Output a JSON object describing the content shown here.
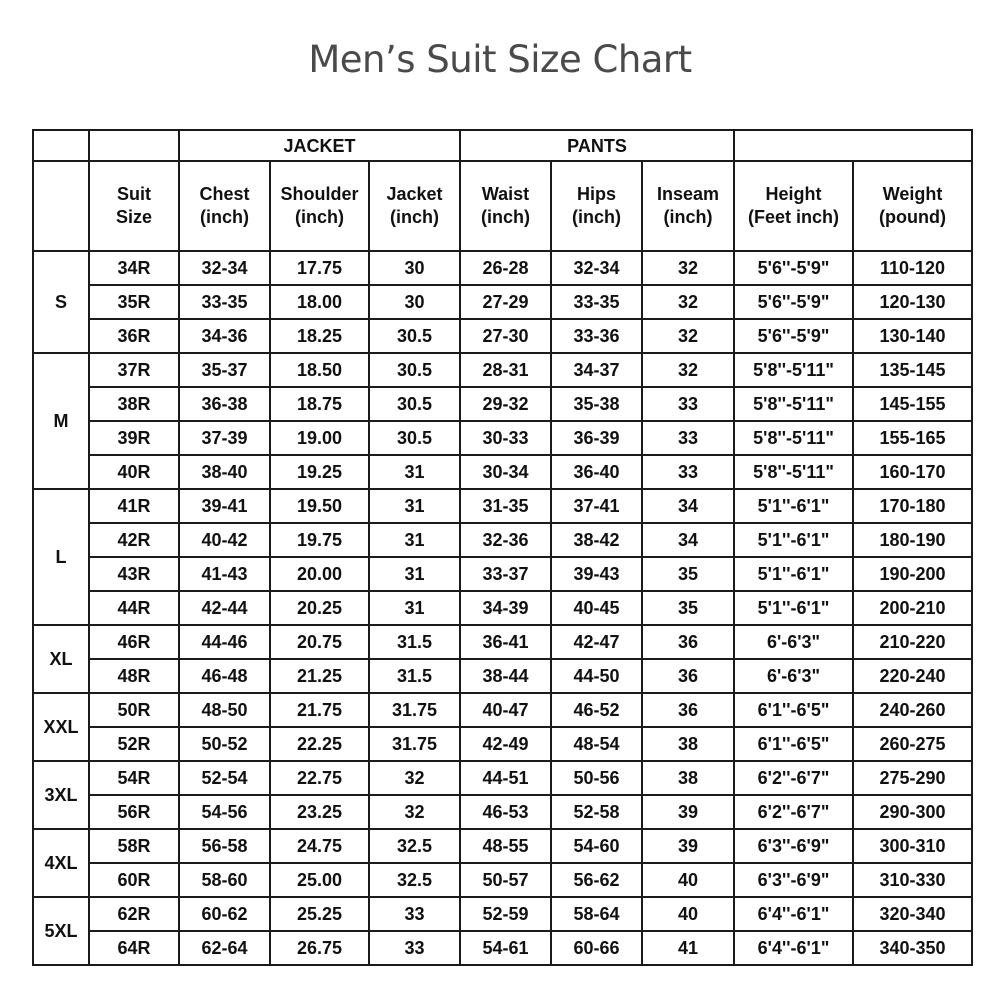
{
  "title": "Men’s Suit Size Chart",
  "groups": {
    "jacket": "JACKET",
    "pants": "PANTS"
  },
  "headers": {
    "suit_size": [
      "Suit",
      "Size"
    ],
    "chest": [
      "Chest",
      "(inch)"
    ],
    "shoulder": [
      "Shoulder",
      "(inch)"
    ],
    "jacket": [
      "Jacket",
      "(inch)"
    ],
    "waist": [
      "Waist",
      "(inch)"
    ],
    "hips": [
      "Hips",
      "(inch)"
    ],
    "inseam": [
      "Inseam",
      "(inch)"
    ],
    "height": [
      "Height",
      "(Feet inch)"
    ],
    "weight": [
      "Weight",
      "(pound)"
    ]
  },
  "size_groups": [
    {
      "label": "S",
      "rows": [
        [
          "34R",
          "32-34",
          "17.75",
          "30",
          "26-28",
          "32-34",
          "32",
          "5'6''-5'9\"",
          "110-120"
        ],
        [
          "35R",
          "33-35",
          "18.00",
          "30",
          "27-29",
          "33-35",
          "32",
          "5'6''-5'9\"",
          "120-130"
        ],
        [
          "36R",
          "34-36",
          "18.25",
          "30.5",
          "27-30",
          "33-36",
          "32",
          "5'6''-5'9\"",
          "130-140"
        ]
      ]
    },
    {
      "label": "M",
      "rows": [
        [
          "37R",
          "35-37",
          "18.50",
          "30.5",
          "28-31",
          "34-37",
          "32",
          "5'8''-5'11\"",
          "135-145"
        ],
        [
          "38R",
          "36-38",
          "18.75",
          "30.5",
          "29-32",
          "35-38",
          "33",
          "5'8''-5'11\"",
          "145-155"
        ],
        [
          "39R",
          "37-39",
          "19.00",
          "30.5",
          "30-33",
          "36-39",
          "33",
          "5'8''-5'11\"",
          "155-165"
        ],
        [
          "40R",
          "38-40",
          "19.25",
          "31",
          "30-34",
          "36-40",
          "33",
          "5'8''-5'11\"",
          "160-170"
        ]
      ]
    },
    {
      "label": "L",
      "rows": [
        [
          "41R",
          "39-41",
          "19.50",
          "31",
          "31-35",
          "37-41",
          "34",
          "5'1''-6'1\"",
          "170-180"
        ],
        [
          "42R",
          "40-42",
          "19.75",
          "31",
          "32-36",
          "38-42",
          "34",
          "5'1''-6'1\"",
          "180-190"
        ],
        [
          "43R",
          "41-43",
          "20.00",
          "31",
          "33-37",
          "39-43",
          "35",
          "5'1''-6'1\"",
          "190-200"
        ],
        [
          "44R",
          "42-44",
          "20.25",
          "31",
          "34-39",
          "40-45",
          "35",
          "5'1''-6'1\"",
          "200-210"
        ]
      ]
    },
    {
      "label": "XL",
      "rows": [
        [
          "46R",
          "44-46",
          "20.75",
          "31.5",
          "36-41",
          "42-47",
          "36",
          "6'-6'3\"",
          "210-220"
        ],
        [
          "48R",
          "46-48",
          "21.25",
          "31.5",
          "38-44",
          "44-50",
          "36",
          "6'-6'3\"",
          "220-240"
        ]
      ]
    },
    {
      "label": "XXL",
      "rows": [
        [
          "50R",
          "48-50",
          "21.75",
          "31.75",
          "40-47",
          "46-52",
          "36",
          "6'1''-6'5\"",
          "240-260"
        ],
        [
          "52R",
          "50-52",
          "22.25",
          "31.75",
          "42-49",
          "48-54",
          "38",
          "6'1''-6'5\"",
          "260-275"
        ]
      ]
    },
    {
      "label": "3XL",
      "rows": [
        [
          "54R",
          "52-54",
          "22.75",
          "32",
          "44-51",
          "50-56",
          "38",
          "6'2''-6'7\"",
          "275-290"
        ],
        [
          "56R",
          "54-56",
          "23.25",
          "32",
          "46-53",
          "52-58",
          "39",
          "6'2''-6'7\"",
          "290-300"
        ]
      ]
    },
    {
      "label": "4XL",
      "rows": [
        [
          "58R",
          "56-58",
          "24.75",
          "32.5",
          "48-55",
          "54-60",
          "39",
          "6'3''-6'9\"",
          "300-310"
        ],
        [
          "60R",
          "58-60",
          "25.00",
          "32.5",
          "50-57",
          "56-62",
          "40",
          "6'3''-6'9\"",
          "310-330"
        ]
      ]
    },
    {
      "label": "5XL",
      "rows": [
        [
          "62R",
          "60-62",
          "25.25",
          "33",
          "52-59",
          "58-64",
          "40",
          "6'4''-6'1\"",
          "320-340"
        ],
        [
          "64R",
          "62-64",
          "26.75",
          "33",
          "54-61",
          "60-66",
          "41",
          "6'4''-6'1\"",
          "340-350"
        ]
      ]
    }
  ]
}
